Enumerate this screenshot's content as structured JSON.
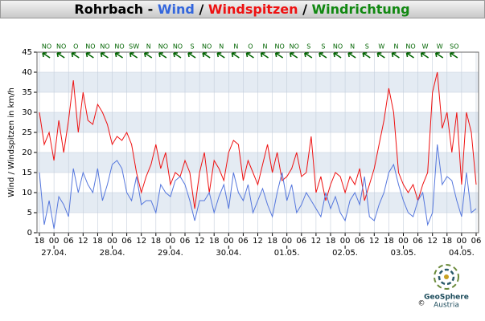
{
  "chart_data": {
    "type": "line",
    "title_parts": [
      {
        "text": "Rohrbach - ",
        "color": "#000000"
      },
      {
        "text": "Wind",
        "color": "#3366dd"
      },
      {
        "text": " / ",
        "color": "#000000"
      },
      {
        "text": "Windspitzen",
        "color": "#ee1111"
      },
      {
        "text": " / ",
        "color": "#000000"
      },
      {
        "text": "Windrichtung",
        "color": "#118811"
      }
    ],
    "y_label": "Wind / Windspitzen in km/h",
    "xlim": [
      -1,
      181
    ],
    "xticks": [
      {
        "value": 0,
        "label": "18"
      },
      {
        "value": 6,
        "label": "00"
      },
      {
        "value": 12,
        "label": "06"
      },
      {
        "value": 18,
        "label": "12"
      },
      {
        "value": 24,
        "label": "18"
      },
      {
        "value": 30,
        "label": "00"
      },
      {
        "value": 36,
        "label": "06"
      },
      {
        "value": 42,
        "label": "12"
      },
      {
        "value": 48,
        "label": "18"
      },
      {
        "value": 54,
        "label": "00"
      },
      {
        "value": 60,
        "label": "06"
      },
      {
        "value": 66,
        "label": "12"
      },
      {
        "value": 72,
        "label": "18"
      },
      {
        "value": 78,
        "label": "00"
      },
      {
        "value": 84,
        "label": "06"
      },
      {
        "value": 90,
        "label": "12"
      },
      {
        "value": 96,
        "label": "18"
      },
      {
        "value": 102,
        "label": "00"
      },
      {
        "value": 108,
        "label": "06"
      },
      {
        "value": 114,
        "label": "12"
      },
      {
        "value": 120,
        "label": "18"
      },
      {
        "value": 126,
        "label": "00"
      },
      {
        "value": 132,
        "label": "06"
      },
      {
        "value": 138,
        "label": "12"
      },
      {
        "value": 144,
        "label": "18"
      },
      {
        "value": 150,
        "label": "00"
      },
      {
        "value": 156,
        "label": "06"
      },
      {
        "value": 162,
        "label": "12"
      },
      {
        "value": 168,
        "label": "18"
      },
      {
        "value": 174,
        "label": "00"
      },
      {
        "value": 180,
        "label": "06"
      }
    ],
    "date_labels": [
      {
        "value": 6,
        "label": "27.04."
      },
      {
        "value": 30,
        "label": "28.04."
      },
      {
        "value": 54,
        "label": "29.04."
      },
      {
        "value": 78,
        "label": "30.04."
      },
      {
        "value": 102,
        "label": "01.05."
      },
      {
        "value": 126,
        "label": "02.05."
      },
      {
        "value": 150,
        "label": "03.05."
      },
      {
        "value": 174,
        "label": "04.05."
      }
    ],
    "directions": [
      "NO",
      "NO",
      "O",
      "NO",
      "NO",
      "NO",
      "SW",
      "N",
      "NO",
      "NO",
      "S",
      "NO",
      "N",
      "N",
      "O",
      "N",
      "NO",
      "NO",
      "S",
      "S",
      "NO",
      "N",
      "S",
      "W",
      "N",
      "NO",
      "W",
      "W",
      "SO"
    ],
    "direction_color": "#006400",
    "ylim": [
      0,
      45
    ],
    "yticks": [
      0,
      5,
      10,
      15,
      20,
      25,
      30,
      35,
      40,
      45
    ],
    "grid": true,
    "banded": true,
    "band_color": "#e4ebf3",
    "x": [
      0,
      2,
      4,
      6,
      8,
      10,
      12,
      14,
      16,
      18,
      20,
      22,
      24,
      26,
      28,
      30,
      32,
      34,
      36,
      38,
      40,
      42,
      44,
      46,
      48,
      50,
      52,
      54,
      56,
      58,
      60,
      62,
      64,
      66,
      68,
      70,
      72,
      74,
      76,
      78,
      80,
      82,
      84,
      86,
      88,
      90,
      92,
      94,
      96,
      98,
      100,
      102,
      104,
      106,
      108,
      110,
      112,
      114,
      116,
      118,
      120,
      122,
      124,
      126,
      128,
      130,
      132,
      134,
      136,
      138,
      140,
      142,
      144,
      146,
      148,
      150,
      152,
      154,
      156,
      158,
      160,
      162,
      164,
      166,
      168,
      170,
      172,
      174,
      176,
      178,
      180
    ],
    "series": [
      {
        "name": "Windspitzen",
        "color": "#ee1111",
        "values": [
          30,
          22,
          25,
          18,
          28,
          20,
          28,
          38,
          25,
          35,
          28,
          27,
          32,
          30,
          27,
          22,
          24,
          23,
          25,
          22,
          15,
          10,
          14,
          17,
          22,
          16,
          20,
          12,
          15,
          14,
          18,
          15,
          6,
          15,
          20,
          10,
          18,
          16,
          13,
          20,
          23,
          22,
          13,
          18,
          15,
          12,
          17,
          22,
          15,
          20,
          13,
          14,
          16,
          20,
          14,
          15,
          24,
          10,
          14,
          8,
          12,
          15,
          14,
          10,
          14,
          12,
          16,
          8,
          12,
          16,
          22,
          28,
          36,
          30,
          15,
          12,
          10,
          12,
          8,
          12,
          15,
          35,
          40,
          26,
          30,
          20,
          30,
          12,
          30,
          25,
          12
        ]
      },
      {
        "name": "Wind",
        "color": "#5577dd",
        "values": [
          15,
          2,
          8,
          1,
          9,
          7,
          4,
          16,
          10,
          15,
          12,
          10,
          16,
          8,
          12,
          17,
          18,
          16,
          10,
          8,
          14,
          7,
          8,
          8,
          5,
          12,
          10,
          9,
          13,
          14,
          12,
          8,
          3,
          8,
          8,
          10,
          5,
          9,
          12,
          6,
          15,
          10,
          8,
          12,
          5,
          8,
          11,
          7,
          4,
          10,
          15,
          8,
          12,
          5,
          7,
          10,
          8,
          6,
          4,
          10,
          6,
          9,
          5,
          3,
          8,
          10,
          7,
          14,
          4,
          3,
          7,
          10,
          15,
          17,
          12,
          8,
          5,
          4,
          8,
          10,
          2,
          5,
          22,
          12,
          14,
          13,
          8,
          4,
          15,
          5,
          6
        ]
      }
    ]
  },
  "logo": {
    "name": "GeoSphere",
    "country": "Austria",
    "copyright": "©"
  }
}
